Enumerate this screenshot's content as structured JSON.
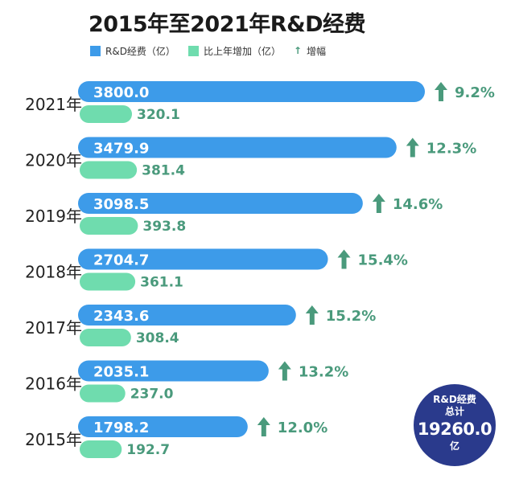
{
  "title": "2015年至2021年R&D经费",
  "legend": {
    "series1": "R&D经费（亿）",
    "series2": "比上年增加（亿）",
    "growth": "增幅"
  },
  "colors": {
    "series1": "#3d9be9",
    "series2": "#6fdcae",
    "growth": "#4a9a7c",
    "circle": "#2a3a8c"
  },
  "total": {
    "line1": "R&D经费",
    "line2": "总计",
    "value": "19260.0",
    "unit": "亿"
  },
  "chart_data": {
    "type": "bar",
    "orientation": "horizontal",
    "categories": [
      "2021年",
      "2020年",
      "2019年",
      "2018年",
      "2017年",
      "2016年",
      "2015年"
    ],
    "series": [
      {
        "name": "R&D经费（亿）",
        "values": [
          3800.0,
          3479.9,
          3098.5,
          2704.7,
          2343.6,
          2035.1,
          1798.2
        ],
        "labels": [
          "3800.0",
          "3479.9",
          "3098.5",
          "2704.7",
          "2343.6",
          "2035.1",
          "1798.2"
        ]
      },
      {
        "name": "比上年增加（亿）",
        "values": [
          320.1,
          381.4,
          393.8,
          361.1,
          308.4,
          237.0,
          192.7
        ],
        "labels": [
          "320.1",
          "381.4",
          "393.8",
          "361.1",
          "308.4",
          "237.0",
          "192.7"
        ]
      }
    ],
    "growth": [
      "9.2%",
      "12.3%",
      "14.6%",
      "15.4%",
      "15.2%",
      "13.2%",
      "12.0%"
    ]
  }
}
